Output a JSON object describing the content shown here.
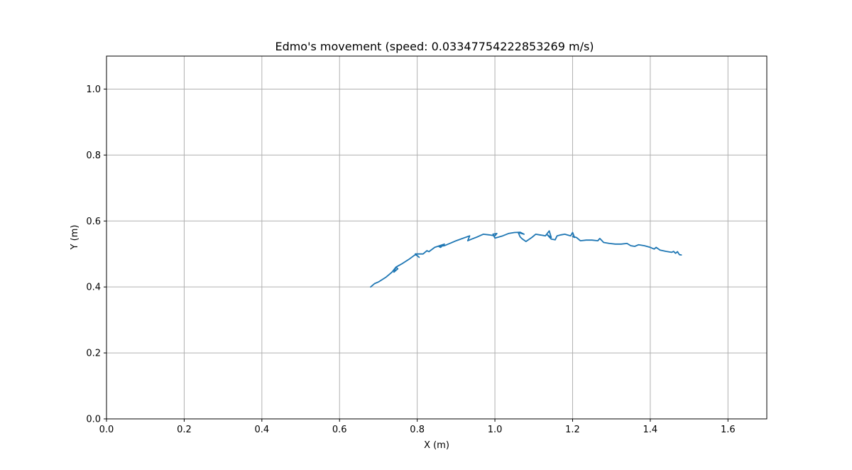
{
  "chart_data": {
    "type": "line",
    "title": "Edmo's movement (speed: 0.03347754222853269 m/s)",
    "xlabel": "X (m)",
    "ylabel": "Y (m)",
    "xlim": [
      0.0,
      1.7
    ],
    "ylim": [
      0.0,
      1.1
    ],
    "xticks": [
      "0.0",
      "0.2",
      "0.4",
      "0.6",
      "0.8",
      "1.0",
      "1.2",
      "1.4",
      "1.6"
    ],
    "yticks": [
      "0.0",
      "0.2",
      "0.4",
      "0.6",
      "0.8",
      "1.0"
    ],
    "grid": true,
    "series": [
      {
        "color": "#1f77b4",
        "x": [
          0.68,
          0.69,
          0.7,
          0.72,
          0.735,
          0.745,
          0.74,
          0.75,
          0.745,
          0.76,
          0.78,
          0.795,
          0.8,
          0.805,
          0.795,
          0.815,
          0.825,
          0.83,
          0.845,
          0.87,
          0.86,
          0.855,
          0.87,
          0.9,
          0.935,
          0.93,
          0.94,
          0.955,
          0.97,
          0.985,
          1.0,
          1.005,
          0.995,
          1.0,
          1.02,
          1.035,
          1.05,
          1.065,
          1.075,
          1.06,
          1.065,
          1.07,
          1.08,
          1.095,
          1.105,
          1.115,
          1.125,
          1.13,
          1.14,
          1.145,
          1.135,
          1.145,
          1.155,
          1.16,
          1.17,
          1.18,
          1.195,
          1.2,
          1.205,
          1.2,
          1.21,
          1.22,
          1.235,
          1.25,
          1.265,
          1.27,
          1.28,
          1.295,
          1.31,
          1.325,
          1.34,
          1.35,
          1.36,
          1.37,
          1.385,
          1.4,
          1.41,
          1.415,
          1.425,
          1.44,
          1.455,
          1.46,
          1.465,
          1.47,
          1.475,
          1.48
        ],
        "y": [
          0.4,
          0.41,
          0.415,
          0.43,
          0.445,
          0.46,
          0.445,
          0.455,
          0.46,
          0.47,
          0.485,
          0.498,
          0.495,
          0.49,
          0.5,
          0.5,
          0.51,
          0.507,
          0.52,
          0.53,
          0.52,
          0.523,
          0.525,
          0.54,
          0.555,
          0.54,
          0.545,
          0.552,
          0.56,
          0.558,
          0.555,
          0.562,
          0.56,
          0.548,
          0.555,
          0.562,
          0.565,
          0.566,
          0.56,
          0.565,
          0.552,
          0.546,
          0.538,
          0.55,
          0.56,
          0.558,
          0.556,
          0.555,
          0.57,
          0.55,
          0.558,
          0.545,
          0.543,
          0.555,
          0.558,
          0.56,
          0.555,
          0.565,
          0.55,
          0.553,
          0.55,
          0.54,
          0.542,
          0.542,
          0.54,
          0.547,
          0.535,
          0.532,
          0.53,
          0.53,
          0.532,
          0.525,
          0.523,
          0.528,
          0.525,
          0.52,
          0.515,
          0.52,
          0.512,
          0.508,
          0.505,
          0.508,
          0.502,
          0.507,
          0.498,
          0.497
        ]
      }
    ]
  }
}
